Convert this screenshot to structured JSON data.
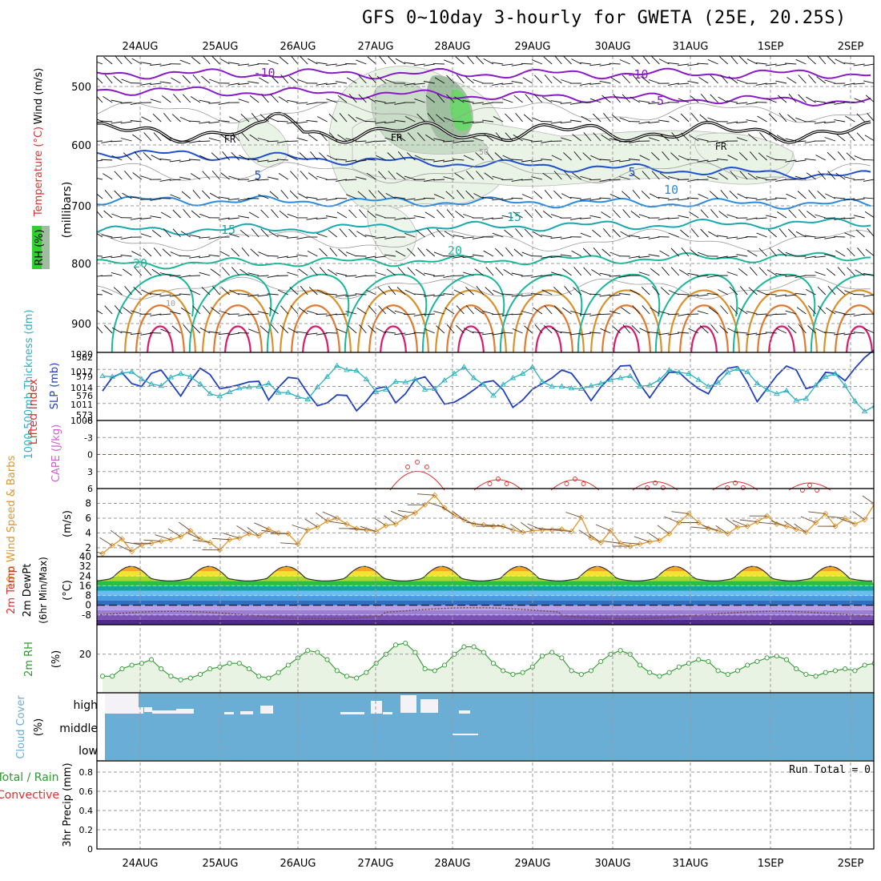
{
  "title": "GFS 0~10day 3-hourly for GWETA (25E, 20.25S)",
  "dates": [
    "24AUG",
    "25AUG",
    "26AUG",
    "27AUG",
    "28AUG",
    "29AUG",
    "30AUG",
    "31AUG",
    "1SEP",
    "2SEP"
  ],
  "colors": {
    "grid": "#9a9a9a",
    "temp_low": "#8a1bc8",
    "temp_mid": "#1f4fd0",
    "temp_20": "#18b89a",
    "temp_warm": "#d9922a",
    "slp": "#1f3fc0",
    "thickness": "#2ab0c0",
    "lifted": "#e03030",
    "wind10": "#e0962a",
    "rh2m": "#2e9a2e",
    "cloud": "#6aaed6",
    "precip_total": "#2e9a2e",
    "precip_conv": "#e03030"
  },
  "panels": {
    "upper": {
      "label_wind": "Wind (m/s)",
      "label_temp": "Temperature (°C)",
      "label_rh": "RH (%)",
      "label_mb": "(millibars)",
      "pressure_ticks": [
        "500",
        "600",
        "700",
        "800",
        "900"
      ],
      "contour_labels": [
        "-10",
        "-10",
        "-5",
        "5",
        "5",
        "10",
        "15",
        "15",
        "20",
        "20",
        "FR",
        "FR",
        "FR",
        "10",
        "50"
      ]
    },
    "slp": {
      "label_thick": "1000-500mb Thickness (dm)",
      "label_slp": "SLP (mb)",
      "left_ticks": [
        "582",
        "579",
        "576",
        "573"
      ],
      "right_ticks": [
        "1020",
        "1017",
        "1014",
        "1011",
        "1008"
      ]
    },
    "lifted": {
      "label_li": "Lifted Index",
      "label_cape": "CAPE (J/kg)",
      "ticks": [
        "-6",
        "-3",
        "0",
        "3",
        "6"
      ]
    },
    "wind10": {
      "label": "10m Wind Speed & Barbs",
      "unit": "(m/s)",
      "ticks": [
        "8",
        "6",
        "4",
        "2"
      ]
    },
    "temp2m": {
      "label_a": "2m Temp",
      "label_b": "2m DewPt",
      "label_c": "(6hr Min/Max)",
      "unit": "(°C)",
      "ticks": [
        "40",
        "32",
        "24",
        "16",
        "8",
        "0",
        "-8"
      ]
    },
    "rh2m": {
      "label": "2m RH",
      "unit": "(%)",
      "ticks": [
        "20"
      ]
    },
    "cloud": {
      "label": "Cloud Cover",
      "unit": "(%)",
      "levels": [
        "high",
        "middle",
        "low"
      ]
    },
    "precip": {
      "label_a": "Total / Rain",
      "label_b": "Convective",
      "label_c": "3hr Precip (mm)",
      "ticks": [
        "0.8",
        "0.6",
        "0.4",
        "0.2",
        "0"
      ],
      "run_total": "Run Total = 0"
    }
  },
  "chart_data": [
    {
      "type": "line",
      "panel": "sea level pressure and 1000-500mb thickness",
      "x": [
        "23AUG12",
        "23AUG15",
        "23AUG18",
        "23AUG21",
        "24AUG00",
        "24AUG03",
        "24AUG06",
        "24AUG09",
        "24AUG12",
        "24AUG15",
        "24AUG18",
        "24AUG21",
        "25AUG00",
        "25AUG03",
        "25AUG06",
        "25AUG09",
        "25AUG12",
        "25AUG15",
        "25AUG18",
        "25AUG21",
        "26AUG00",
        "26AUG03",
        "26AUG06",
        "26AUG09",
        "26AUG12",
        "26AUG15",
        "26AUG18",
        "26AUG21",
        "27AUG00",
        "27AUG03",
        "27AUG06",
        "27AUG09",
        "27AUG12",
        "27AUG15",
        "27AUG18",
        "27AUG21",
        "28AUG00",
        "28AUG03",
        "28AUG06",
        "28AUG09",
        "28AUG12",
        "28AUG15",
        "28AUG18",
        "28AUG21",
        "29AUG00",
        "29AUG03",
        "29AUG06",
        "29AUG09",
        "29AUG12",
        "29AUG15",
        "29AUG18",
        "29AUG21",
        "30AUG00",
        "30AUG03",
        "30AUG06",
        "30AUG09",
        "30AUG12",
        "30AUG15",
        "30AUG18",
        "30AUG21",
        "31AUG00",
        "31AUG03",
        "31AUG06",
        "31AUG09",
        "31AUG12",
        "31AUG15",
        "31AUG18",
        "31AUG21",
        "1SEP00",
        "1SEP03",
        "1SEP06",
        "1SEP09",
        "1SEP12",
        "1SEP15",
        "1SEP18",
        "1SEP21",
        "2SEP00",
        "2SEP03",
        "2SEP06",
        "2SEP09"
      ],
      "series": [
        {
          "values": [
            1013.2,
            1015.6,
            1016.4,
            1014.5,
            1014.0,
            1016.3,
            1016.9,
            1014.6,
            1012.3,
            1015.0,
            1017.2,
            1016.1,
            1013.6,
            1013.9,
            1014.3,
            1014.8,
            1014.9,
            1011.6,
            1013.8,
            1015.6,
            1015.4,
            1012.8,
            1010.6,
            1011.1,
            1012.5,
            1012.4,
            1009.7,
            1011.4,
            1013.6,
            1014.0,
            1011.1,
            1012.7,
            1015.2,
            1015.7,
            1013.5,
            1010.9,
            1011.2,
            1012.2,
            1013.4,
            1014.7,
            1015.0,
            1013.4,
            1010.3,
            1011.6,
            1013.5,
            1014.5,
            1015.5,
            1016.9,
            1016.3,
            1014.1,
            1011.5,
            1013.9,
            1015.7,
            1017.6,
            1017.7,
            1014.4,
            1012.0,
            1014.5,
            1016.5,
            1016.5,
            1014.9,
            1013.6,
            1012.7,
            1015.6,
            1017.2,
            1017.5,
            1014.7,
            1011.3,
            1013.6,
            1015.9,
            1017.6,
            1016.9,
            1013.6,
            1014.1,
            1016.5,
            1016.3,
            1015.0,
            1017.2,
            1019.1,
            1020.5
          ]
        },
        {
          "values": [
            578.9,
            578.8,
            579.4,
            579.6,
            578.4,
            577.6,
            577.3,
            578.7,
            579.3,
            578.8,
            577.6,
            576.0,
            575.6,
            576.3,
            576.9,
            577.1,
            577.2,
            577.7,
            576.2,
            576.2,
            575.5,
            575.1,
            577.1,
            578.8,
            580.6,
            579.9,
            579.8,
            578.4,
            576.3,
            576.7,
            578.0,
            577.9,
            578.4,
            576.7,
            576.8,
            578.2,
            579.3,
            580.4,
            578.6,
            577.5,
            575.7,
            577.5,
            578.6,
            579.3,
            580.4,
            578.0,
            577.2,
            577.2,
            576.9,
            576.8,
            577.3,
            577.7,
            578.3,
            578.6,
            578.9,
            577.2,
            577.4,
            578.3,
            579.9,
            579.5,
            579.3,
            578.3,
            577.2,
            577.8,
            579.5,
            580.1,
            579.6,
            577.7,
            576.7,
            576.0,
            576.5,
            574.9,
            575.2,
            577.4,
            578.8,
            579.3,
            577.3,
            574.8,
            573.1,
            574.0
          ]
        }
      ]
    },
    {
      "type": "line",
      "panel": "10m wind speed",
      "x": [
        "23AUG12",
        "23AUG15",
        "23AUG18",
        "23AUG21",
        "24AUG00",
        "24AUG03",
        "24AUG06",
        "24AUG09",
        "24AUG12",
        "24AUG15",
        "24AUG18",
        "24AUG21",
        "25AUG00",
        "25AUG03",
        "25AUG06",
        "25AUG09",
        "25AUG12",
        "25AUG15",
        "25AUG18",
        "25AUG21",
        "26AUG00",
        "26AUG03",
        "26AUG06",
        "26AUG09",
        "26AUG12",
        "26AUG15",
        "26AUG18",
        "26AUG21",
        "27AUG00",
        "27AUG03",
        "27AUG06",
        "27AUG09",
        "27AUG12",
        "27AUG15",
        "27AUG18",
        "27AUG21",
        "28AUG00",
        "28AUG03",
        "28AUG06",
        "28AUG09",
        "28AUG12",
        "28AUG15",
        "28AUG18",
        "28AUG21",
        "29AUG00",
        "29AUG03",
        "29AUG06",
        "29AUG09",
        "29AUG12",
        "29AUG15",
        "29AUG18",
        "29AUG21",
        "30AUG00",
        "30AUG03",
        "30AUG06",
        "30AUG09",
        "30AUG12",
        "30AUG15",
        "30AUG18",
        "30AUG21",
        "31AUG00",
        "31AUG03",
        "31AUG06",
        "31AUG09",
        "31AUG12",
        "31AUG15",
        "31AUG18",
        "31AUG21",
        "1SEP00",
        "1SEP03",
        "1SEP06",
        "1SEP09",
        "1SEP12",
        "1SEP15",
        "1SEP18",
        "1SEP21",
        "2SEP00",
        "2SEP03",
        "2SEP06",
        "2SEP09"
      ],
      "series": [
        {
          "values": [
            1.2,
            2.3,
            3.2,
            1.5,
            2.4,
            2.6,
            2.9,
            3.1,
            3.5,
            4.3,
            3.2,
            2.7,
            1.7,
            3.1,
            3.3,
            3.9,
            3.6,
            4.5,
            4.0,
            3.9,
            2.5,
            4.4,
            4.8,
            5.6,
            6.0,
            5.2,
            4.6,
            4.4,
            4.2,
            5.0,
            5.2,
            6.1,
            6.7,
            7.8,
            9.1,
            7.4,
            6.4,
            5.8,
            5.2,
            5.1,
            4.9,
            4.9,
            4.4,
            4.1,
            4.3,
            4.4,
            4.4,
            4.5,
            4.2,
            6.1,
            3.3,
            2.7,
            4.3,
            2.6,
            2.2,
            2.5,
            2.8,
            3.0,
            3.9,
            5.4,
            6.6,
            5.4,
            4.6,
            4.3,
            3.9,
            4.8,
            4.9,
            5.5,
            6.3,
            5.2,
            4.9,
            4.5,
            4.1,
            5.4,
            6.6,
            4.9,
            6.0,
            5.2,
            5.8,
            7.9
          ]
        }
      ]
    },
    {
      "type": "area",
      "panel": "2m relative humidity",
      "x": [
        "23AUG12",
        "23AUG15",
        "23AUG18",
        "23AUG21",
        "24AUG00",
        "24AUG03",
        "24AUG06",
        "24AUG09",
        "24AUG12",
        "24AUG15",
        "24AUG18",
        "24AUG21",
        "25AUG00",
        "25AUG03",
        "25AUG06",
        "25AUG09",
        "25AUG12",
        "25AUG15",
        "25AUG18",
        "25AUG21",
        "26AUG00",
        "26AUG03",
        "26AUG06",
        "26AUG09",
        "26AUG12",
        "26AUG15",
        "26AUG18",
        "26AUG21",
        "27AUG00",
        "27AUG03",
        "27AUG06",
        "27AUG09",
        "27AUG12",
        "27AUG15",
        "27AUG18",
        "27AUG21",
        "28AUG00",
        "28AUG03",
        "28AUG06",
        "28AUG09",
        "28AUG12",
        "28AUG15",
        "28AUG18",
        "28AUG21",
        "29AUG00",
        "29AUG03",
        "29AUG06",
        "29AUG09",
        "29AUG12",
        "29AUG15",
        "29AUG18",
        "29AUG21",
        "30AUG00",
        "30AUG03",
        "30AUG06",
        "30AUG09",
        "30AUG12",
        "30AUG15",
        "30AUG18",
        "30AUG21",
        "31AUG00",
        "31AUG03",
        "31AUG06",
        "31AUG09",
        "31AUG12",
        "31AUG15",
        "31AUG18",
        "31AUG21",
        "1SEP00",
        "1SEP03",
        "1SEP06",
        "1SEP09",
        "1SEP12",
        "1SEP15",
        "1SEP18",
        "1SEP21",
        "2SEP00",
        "2SEP03",
        "2SEP06",
        "2SEP09"
      ],
      "series": [
        {
          "values": [
            8,
            8,
            12,
            14,
            15,
            17,
            12,
            8,
            6,
            7,
            9,
            12,
            13,
            15,
            15,
            12,
            8,
            7,
            10,
            14,
            18,
            22,
            21,
            17,
            11,
            8,
            7,
            10,
            15,
            20,
            25,
            26,
            21,
            12,
            11,
            14,
            20,
            24,
            24,
            21,
            15,
            11,
            9,
            10,
            13,
            19,
            21,
            18,
            11,
            9,
            11,
            16,
            20,
            22,
            20,
            14,
            10,
            8,
            10,
            13,
            15,
            17,
            16,
            11,
            9,
            11,
            14,
            16,
            18,
            19,
            17,
            12,
            9,
            8,
            10,
            11,
            12,
            11,
            14,
            15
          ]
        }
      ]
    }
  ]
}
